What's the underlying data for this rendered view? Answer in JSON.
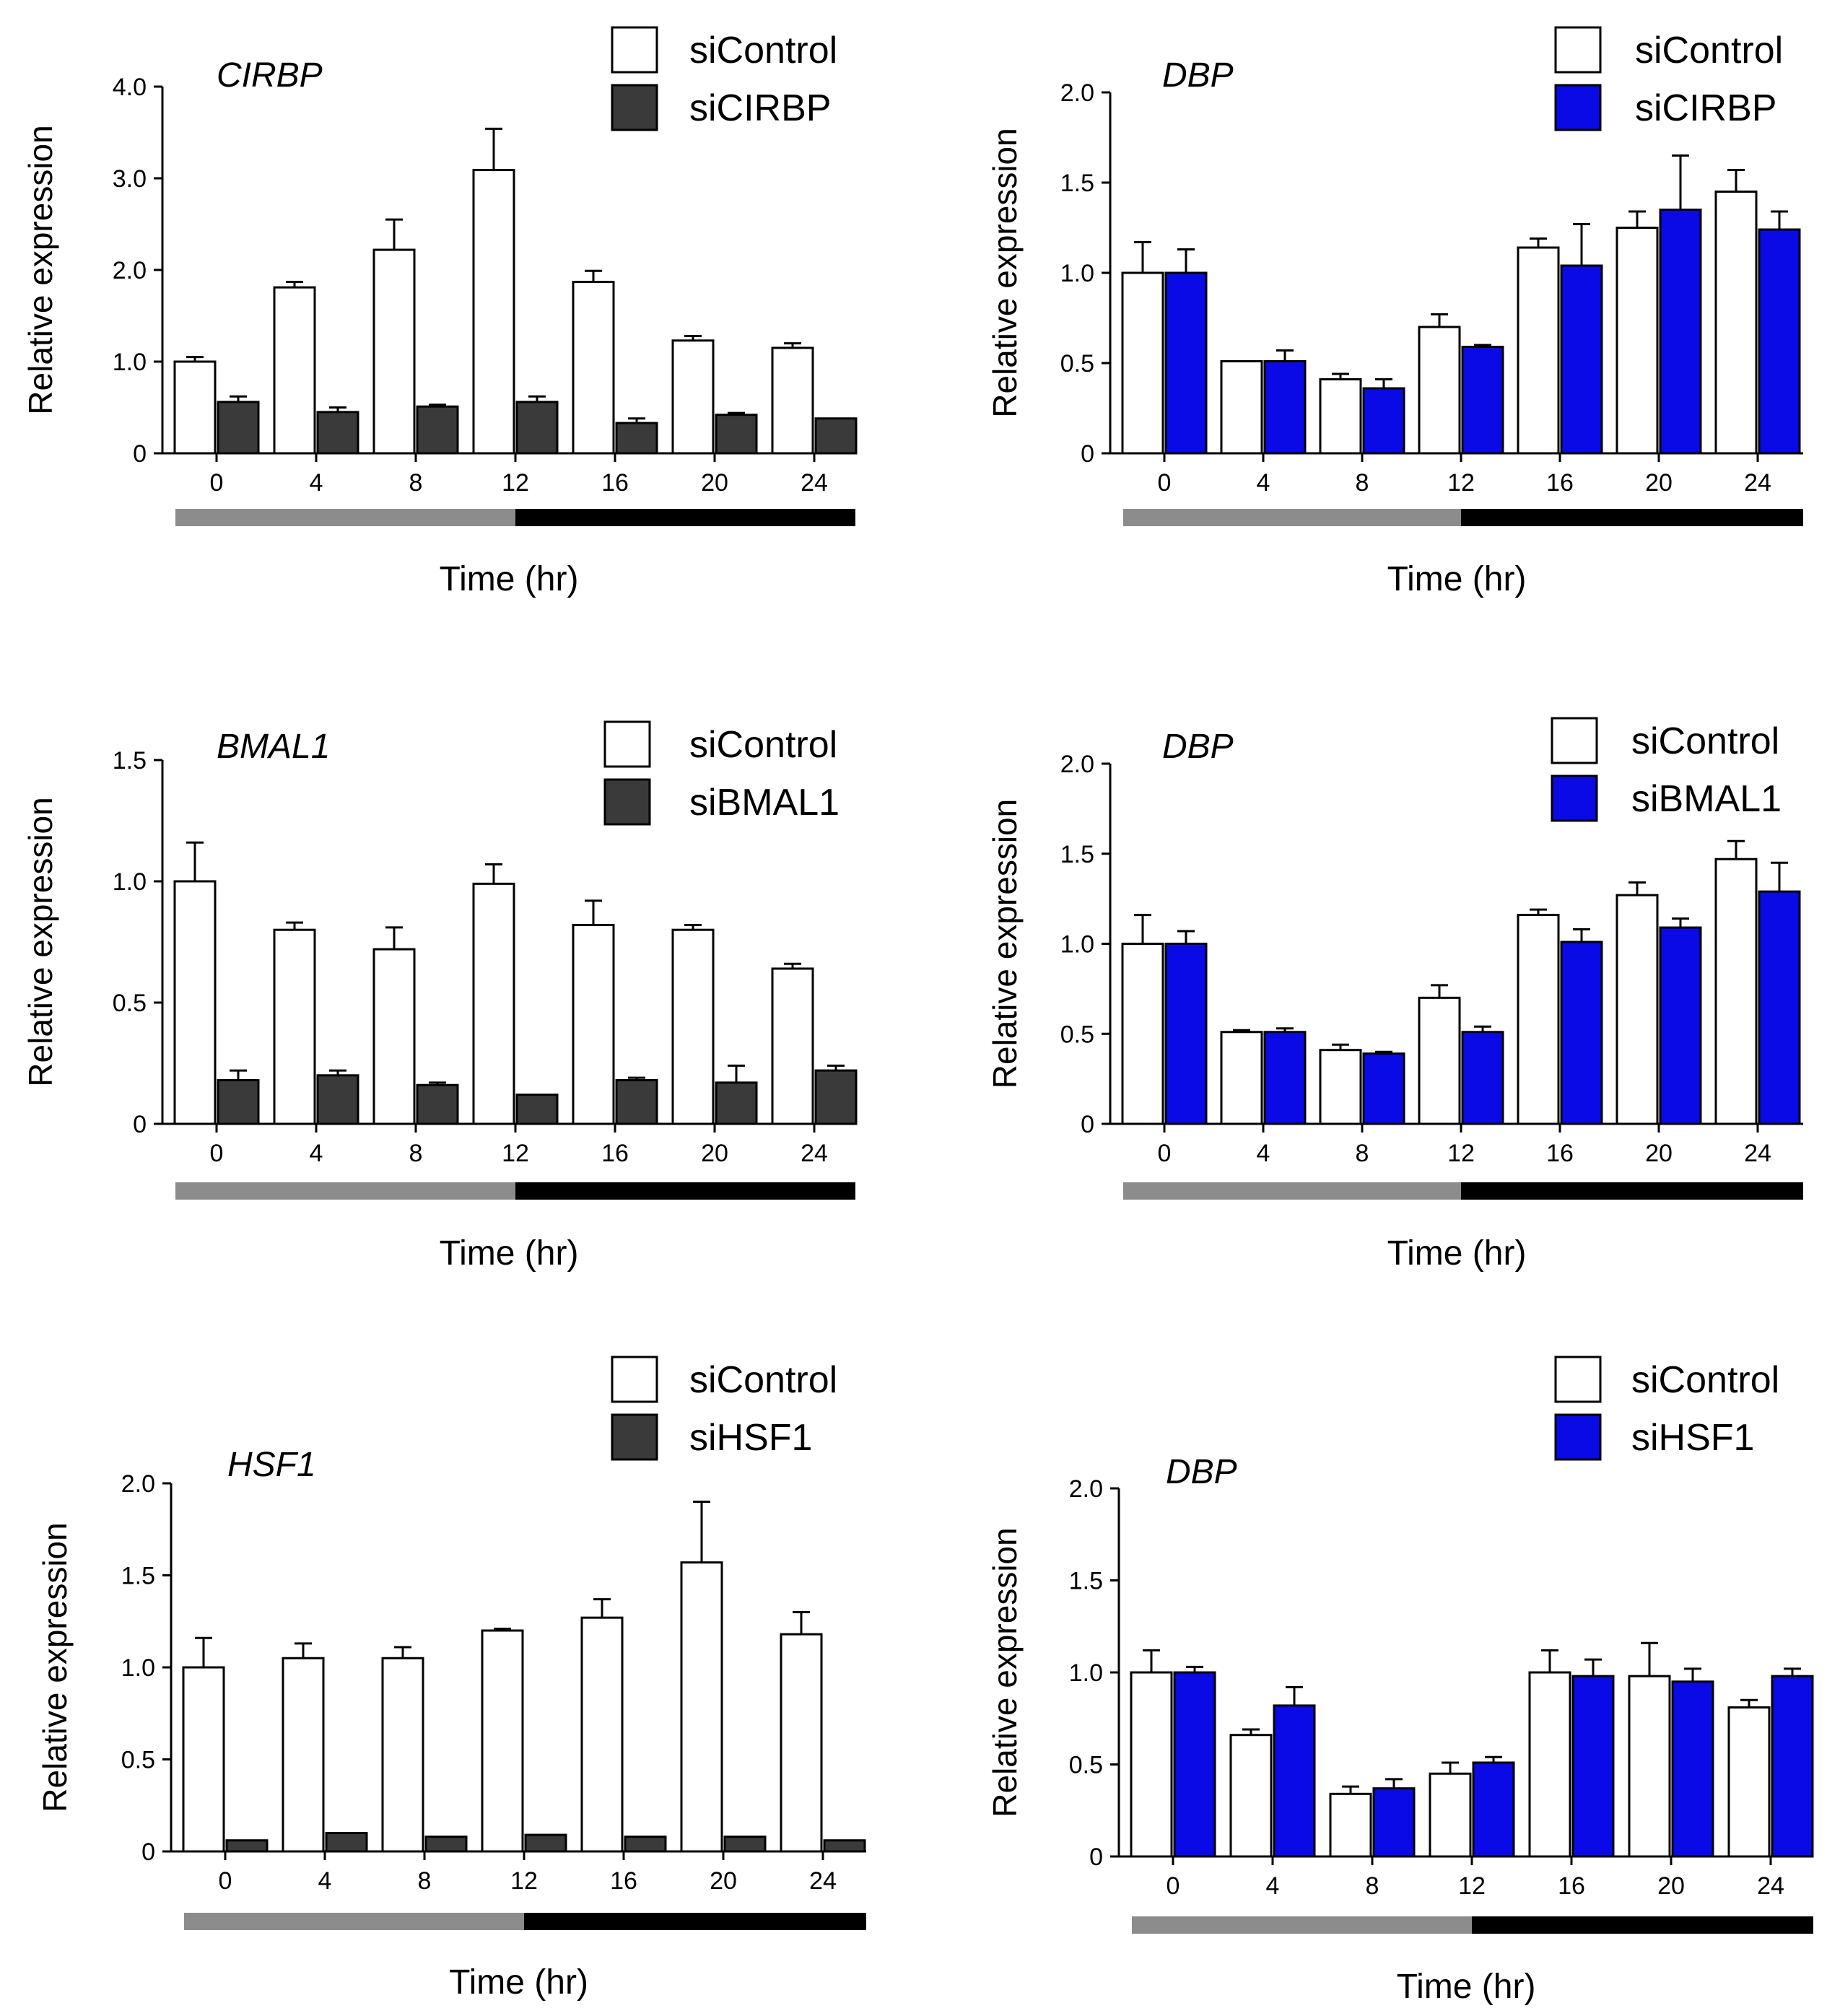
{
  "chart_data": [
    {
      "type": "bar",
      "title": "CIRBP",
      "xlabel": "Time (hr)",
      "ylabel": "Relative expression",
      "categories": [
        "0",
        "4",
        "8",
        "12",
        "16",
        "20",
        "24"
      ],
      "ylim": [
        0,
        4.0
      ],
      "yticks": [
        0,
        1.0,
        2.0,
        3.0,
        4.0
      ],
      "ytick_labels": [
        "0",
        "1.0",
        "2.0",
        "3.0",
        "4.0"
      ],
      "series": [
        {
          "name": "siControl",
          "color": "#ffffff",
          "values": [
            1.0,
            1.81,
            2.22,
            3.09,
            1.87,
            1.23,
            1.15
          ],
          "errors": [
            0.05,
            0.06,
            0.33,
            0.45,
            0.12,
            0.05,
            0.05
          ]
        },
        {
          "name": "siCIRBP",
          "color": "#3a3a3a",
          "values": [
            0.56,
            0.45,
            0.51,
            0.56,
            0.33,
            0.42,
            0.38
          ],
          "errors": [
            0.06,
            0.05,
            0.02,
            0.06,
            0.05,
            0.02,
            0.0
          ]
        }
      ]
    },
    {
      "type": "bar",
      "title": "DBP",
      "xlabel": "Time (hr)",
      "ylabel": "Relative expression",
      "categories": [
        "0",
        "4",
        "8",
        "12",
        "16",
        "20",
        "24"
      ],
      "ylim": [
        0,
        2.0
      ],
      "yticks": [
        0,
        0.5,
        1.0,
        1.5,
        2.0
      ],
      "ytick_labels": [
        "0",
        "0.5",
        "1.0",
        "1.5",
        "2.0"
      ],
      "series": [
        {
          "name": "siControl",
          "color": "#ffffff",
          "values": [
            1.0,
            0.51,
            0.41,
            0.7,
            1.14,
            1.25,
            1.45
          ],
          "errors": [
            0.17,
            0.0,
            0.03,
            0.07,
            0.05,
            0.09,
            0.12
          ]
        },
        {
          "name": "siCIRBP",
          "color": "#0a0ae6",
          "values": [
            1.0,
            0.51,
            0.36,
            0.59,
            1.04,
            1.35,
            1.24
          ],
          "errors": [
            0.13,
            0.06,
            0.05,
            0.01,
            0.23,
            0.3,
            0.1
          ]
        }
      ]
    },
    {
      "type": "bar",
      "title": "BMAL1",
      "xlabel": "Time (hr)",
      "ylabel": "Relative expression",
      "categories": [
        "0",
        "4",
        "8",
        "12",
        "16",
        "20",
        "24"
      ],
      "ylim": [
        0,
        1.5
      ],
      "yticks": [
        0,
        0.5,
        1.0,
        1.5
      ],
      "ytick_labels": [
        "0",
        "0.5",
        "1.0",
        "1.5"
      ],
      "series": [
        {
          "name": "siControl",
          "color": "#ffffff",
          "values": [
            1.0,
            0.8,
            0.72,
            0.99,
            0.82,
            0.8,
            0.64
          ],
          "errors": [
            0.16,
            0.03,
            0.09,
            0.08,
            0.1,
            0.02,
            0.02
          ]
        },
        {
          "name": "siBMAL1",
          "color": "#3a3a3a",
          "values": [
            0.18,
            0.2,
            0.16,
            0.12,
            0.18,
            0.17,
            0.22
          ],
          "errors": [
            0.04,
            0.02,
            0.01,
            0.0,
            0.01,
            0.07,
            0.02
          ]
        }
      ]
    },
    {
      "type": "bar",
      "title": "DBP",
      "xlabel": "Time (hr)",
      "ylabel": "Relative expression",
      "categories": [
        "0",
        "4",
        "8",
        "12",
        "16",
        "20",
        "24"
      ],
      "ylim": [
        0,
        2.0
      ],
      "yticks": [
        0,
        0.5,
        1.0,
        1.5,
        2.0
      ],
      "ytick_labels": [
        "0",
        "0.5",
        "1.0",
        "1.5",
        "2.0"
      ],
      "series": [
        {
          "name": "siControl",
          "color": "#ffffff",
          "values": [
            1.0,
            0.51,
            0.41,
            0.7,
            1.16,
            1.27,
            1.47
          ],
          "errors": [
            0.16,
            0.01,
            0.03,
            0.07,
            0.03,
            0.07,
            0.1
          ]
        },
        {
          "name": "siBMAL1",
          "color": "#0a0ae6",
          "values": [
            1.0,
            0.51,
            0.39,
            0.51,
            1.01,
            1.09,
            1.29
          ],
          "errors": [
            0.07,
            0.02,
            0.01,
            0.03,
            0.07,
            0.05,
            0.16
          ]
        }
      ]
    },
    {
      "type": "bar",
      "title": "HSF1",
      "xlabel": "Time (hr)",
      "ylabel": "Relative expression",
      "categories": [
        "0",
        "4",
        "8",
        "12",
        "16",
        "20",
        "24"
      ],
      "ylim": [
        0,
        2.0
      ],
      "yticks": [
        0,
        0.5,
        1.0,
        1.5,
        2.0
      ],
      "ytick_labels": [
        "0",
        "0.5",
        "1.0",
        "1.5",
        "2.0"
      ],
      "series": [
        {
          "name": "siControl",
          "color": "#ffffff",
          "values": [
            1.0,
            1.05,
            1.05,
            1.2,
            1.27,
            1.57,
            1.18
          ],
          "errors": [
            0.16,
            0.08,
            0.06,
            0.01,
            0.1,
            0.33,
            0.12
          ]
        },
        {
          "name": "siHSF1",
          "color": "#3a3a3a",
          "values": [
            0.06,
            0.1,
            0.08,
            0.09,
            0.08,
            0.08,
            0.06
          ],
          "errors": [
            0.0,
            0.0,
            0.0,
            0.0,
            0.0,
            0.0,
            0.0
          ]
        }
      ]
    },
    {
      "type": "bar",
      "title": "DBP",
      "xlabel": "Time (hr)",
      "ylabel": "Relative expression",
      "categories": [
        "0",
        "4",
        "8",
        "12",
        "16",
        "20",
        "24"
      ],
      "ylim": [
        0,
        2.0
      ],
      "yticks": [
        0,
        0.5,
        1.0,
        1.5,
        2.0
      ],
      "ytick_labels": [
        "0",
        "0.5",
        "1.0",
        "1.5",
        "2.0"
      ],
      "series": [
        {
          "name": "siControl",
          "color": "#ffffff",
          "values": [
            1.0,
            0.66,
            0.34,
            0.45,
            1.0,
            0.98,
            0.81
          ],
          "errors": [
            0.12,
            0.03,
            0.04,
            0.06,
            0.12,
            0.18,
            0.04
          ]
        },
        {
          "name": "siHSF1",
          "color": "#0a0ae6",
          "values": [
            1.0,
            0.82,
            0.37,
            0.51,
            0.98,
            0.95,
            0.98
          ],
          "errors": [
            0.03,
            0.1,
            0.05,
            0.03,
            0.09,
            0.07,
            0.04
          ]
        }
      ]
    }
  ],
  "colors": {
    "light_phase": "#8c8c8c",
    "dark_phase": "#000000",
    "axis": "#000000"
  }
}
